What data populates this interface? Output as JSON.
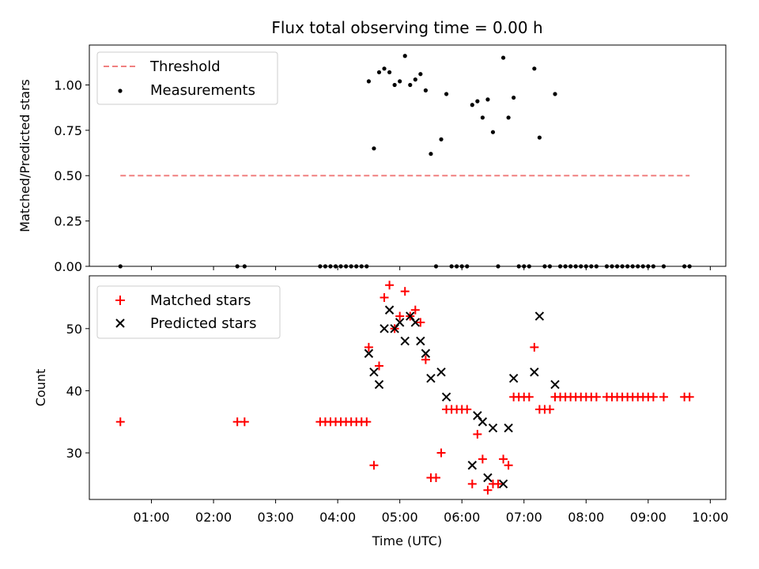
{
  "figure": {
    "title": "Flux total observing time = 0.00 h",
    "xlabel": "Time (UTC)",
    "xticks": [
      "01:00",
      "02:00",
      "03:00",
      "04:00",
      "05:00",
      "06:00",
      "07:00",
      "08:00",
      "09:00",
      "10:00"
    ]
  },
  "colors": {
    "threshold": "#f08080",
    "measurements": "#000000",
    "matched": "#ff0000",
    "predicted": "#000000"
  },
  "chart_data": [
    {
      "type": "scatter",
      "panel": "top",
      "ylabel": "Matched/Predicted stars",
      "xlim": [
        "00:00",
        "10:15"
      ],
      "ylim": [
        0,
        1.22
      ],
      "yticks": [
        "0.00",
        "0.25",
        "0.50",
        "0.75",
        "1.00"
      ],
      "legend": {
        "position": "top-left",
        "entries": [
          "Threshold",
          "Measurements"
        ]
      },
      "threshold": {
        "name": "Threshold",
        "y": 0.5,
        "x": [
          "00:30",
          "09:40"
        ]
      },
      "measurements": {
        "name": "Measurements",
        "points": [
          [
            "00:30",
            0
          ],
          [
            "02:23",
            0
          ],
          [
            "02:30",
            0
          ],
          [
            "03:43",
            0
          ],
          [
            "03:48",
            0
          ],
          [
            "03:53",
            0
          ],
          [
            "03:58",
            0
          ],
          [
            "04:03",
            0
          ],
          [
            "04:08",
            0
          ],
          [
            "04:13",
            0
          ],
          [
            "04:18",
            0
          ],
          [
            "04:23",
            0
          ],
          [
            "04:28",
            0
          ],
          [
            "04:30",
            1.02
          ],
          [
            "04:35",
            0.65
          ],
          [
            "04:40",
            1.07
          ],
          [
            "04:45",
            1.09
          ],
          [
            "04:50",
            1.07
          ],
          [
            "04:55",
            1.0
          ],
          [
            "05:00",
            1.02
          ],
          [
            "05:05",
            1.16
          ],
          [
            "05:10",
            1.0
          ],
          [
            "05:15",
            1.03
          ],
          [
            "05:20",
            1.06
          ],
          [
            "05:25",
            0.97
          ],
          [
            "05:30",
            0.62
          ],
          [
            "05:35",
            0
          ],
          [
            "05:40",
            0.7
          ],
          [
            "05:45",
            0.95
          ],
          [
            "05:50",
            0
          ],
          [
            "05:55",
            0
          ],
          [
            "06:00",
            0
          ],
          [
            "06:05",
            0
          ],
          [
            "06:10",
            0.89
          ],
          [
            "06:15",
            0.91
          ],
          [
            "06:20",
            0.82
          ],
          [
            "06:25",
            0.92
          ],
          [
            "06:30",
            0.74
          ],
          [
            "06:35",
            0
          ],
          [
            "06:40",
            1.15
          ],
          [
            "06:45",
            0.82
          ],
          [
            "06:50",
            0.93
          ],
          [
            "06:55",
            0
          ],
          [
            "07:00",
            0
          ],
          [
            "07:05",
            0
          ],
          [
            "07:10",
            1.09
          ],
          [
            "07:15",
            0.71
          ],
          [
            "07:20",
            0
          ],
          [
            "07:25",
            0
          ],
          [
            "07:30",
            0.95
          ],
          [
            "07:35",
            0
          ],
          [
            "07:40",
            0
          ],
          [
            "07:45",
            0
          ],
          [
            "07:50",
            0
          ],
          [
            "07:55",
            0
          ],
          [
            "08:00",
            0
          ],
          [
            "08:05",
            0
          ],
          [
            "08:10",
            0
          ],
          [
            "08:20",
            0
          ],
          [
            "08:25",
            0
          ],
          [
            "08:30",
            0
          ],
          [
            "08:35",
            0
          ],
          [
            "08:40",
            0
          ],
          [
            "08:45",
            0
          ],
          [
            "08:50",
            0
          ],
          [
            "08:55",
            0
          ],
          [
            "09:00",
            0
          ],
          [
            "09:05",
            0
          ],
          [
            "09:15",
            0
          ],
          [
            "09:35",
            0
          ],
          [
            "09:40",
            0
          ]
        ]
      }
    },
    {
      "type": "scatter",
      "panel": "bottom",
      "ylabel": "Count",
      "xlim": [
        "00:00",
        "10:15"
      ],
      "ylim": [
        22.5,
        58.5
      ],
      "yticks": [
        "30",
        "40",
        "50"
      ],
      "legend": {
        "position": "top-left",
        "entries": [
          "Matched stars",
          "Predicted stars"
        ]
      },
      "series": [
        {
          "name": "Matched stars",
          "marker": "plus",
          "points": [
            [
              "00:30",
              35
            ],
            [
              "02:23",
              35
            ],
            [
              "02:30",
              35
            ],
            [
              "03:43",
              35
            ],
            [
              "03:48",
              35
            ],
            [
              "03:53",
              35
            ],
            [
              "03:58",
              35
            ],
            [
              "04:03",
              35
            ],
            [
              "04:08",
              35
            ],
            [
              "04:13",
              35
            ],
            [
              "04:18",
              35
            ],
            [
              "04:23",
              35
            ],
            [
              "04:28",
              35
            ],
            [
              "04:30",
              47
            ],
            [
              "04:35",
              28
            ],
            [
              "04:40",
              44
            ],
            [
              "04:45",
              55
            ],
            [
              "04:50",
              57
            ],
            [
              "04:55",
              50
            ],
            [
              "05:00",
              52
            ],
            [
              "05:05",
              56
            ],
            [
              "05:10",
              52
            ],
            [
              "05:15",
              53
            ],
            [
              "05:20",
              51
            ],
            [
              "05:25",
              45
            ],
            [
              "05:30",
              26
            ],
            [
              "05:35",
              26
            ],
            [
              "05:40",
              30
            ],
            [
              "05:45",
              37
            ],
            [
              "05:50",
              37
            ],
            [
              "05:55",
              37
            ],
            [
              "06:00",
              37
            ],
            [
              "06:05",
              37
            ],
            [
              "06:10",
              25
            ],
            [
              "06:15",
              33
            ],
            [
              "06:20",
              29
            ],
            [
              "06:25",
              24
            ],
            [
              "06:30",
              25
            ],
            [
              "06:35",
              25
            ],
            [
              "06:40",
              29
            ],
            [
              "06:45",
              28
            ],
            [
              "06:50",
              39
            ],
            [
              "06:55",
              39
            ],
            [
              "07:00",
              39
            ],
            [
              "07:05",
              39
            ],
            [
              "07:10",
              47
            ],
            [
              "07:15",
              37
            ],
            [
              "07:20",
              37
            ],
            [
              "07:25",
              37
            ],
            [
              "07:30",
              39
            ],
            [
              "07:35",
              39
            ],
            [
              "07:40",
              39
            ],
            [
              "07:45",
              39
            ],
            [
              "07:50",
              39
            ],
            [
              "07:55",
              39
            ],
            [
              "08:00",
              39
            ],
            [
              "08:05",
              39
            ],
            [
              "08:10",
              39
            ],
            [
              "08:20",
              39
            ],
            [
              "08:25",
              39
            ],
            [
              "08:30",
              39
            ],
            [
              "08:35",
              39
            ],
            [
              "08:40",
              39
            ],
            [
              "08:45",
              39
            ],
            [
              "08:50",
              39
            ],
            [
              "08:55",
              39
            ],
            [
              "09:00",
              39
            ],
            [
              "09:05",
              39
            ],
            [
              "09:15",
              39
            ],
            [
              "09:35",
              39
            ],
            [
              "09:40",
              39
            ]
          ]
        },
        {
          "name": "Predicted stars",
          "marker": "x",
          "points": [
            [
              "04:30",
              46
            ],
            [
              "04:35",
              43
            ],
            [
              "04:40",
              41
            ],
            [
              "04:45",
              50
            ],
            [
              "04:50",
              53
            ],
            [
              "04:55",
              50
            ],
            [
              "05:00",
              51
            ],
            [
              "05:05",
              48
            ],
            [
              "05:10",
              52
            ],
            [
              "05:15",
              51
            ],
            [
              "05:20",
              48
            ],
            [
              "05:25",
              46
            ],
            [
              "05:30",
              42
            ],
            [
              "05:40",
              43
            ],
            [
              "05:45",
              39
            ],
            [
              "06:10",
              28
            ],
            [
              "06:15",
              36
            ],
            [
              "06:20",
              35
            ],
            [
              "06:25",
              26
            ],
            [
              "06:30",
              34
            ],
            [
              "06:40",
              25
            ],
            [
              "06:45",
              34
            ],
            [
              "06:50",
              42
            ],
            [
              "07:10",
              43
            ],
            [
              "07:15",
              52
            ],
            [
              "07:30",
              41
            ]
          ]
        }
      ]
    }
  ]
}
